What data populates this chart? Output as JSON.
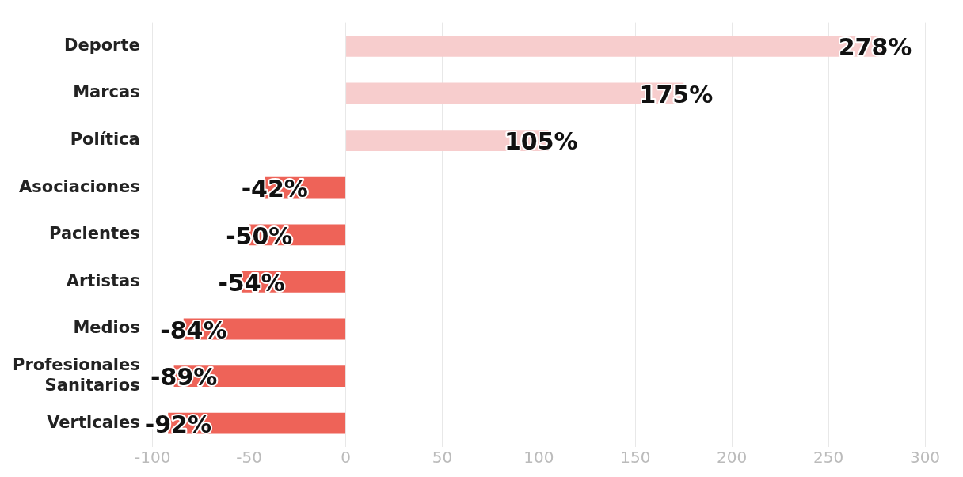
{
  "chart_data": {
    "type": "bar",
    "orientation": "horizontal",
    "categories": [
      "Deporte",
      "Marcas",
      "Política",
      "Asociaciones",
      "Pacientes",
      "Artistas",
      "Medios",
      "Profesionales Sanitarios",
      "Verticales"
    ],
    "values": [
      278,
      175,
      105,
      -42,
      -50,
      -54,
      -84,
      -89,
      -92
    ],
    "colors": [
      "#f7cdcd",
      "#f7cdcd",
      "#f7cdcd",
      "#ee6358",
      "#ee6358",
      "#ee6358",
      "#ee6358",
      "#ee6358",
      "#ee6358"
    ],
    "value_labels": [
      "278%",
      "175%",
      "105%",
      "-42%",
      "-50%",
      "-54%",
      "-84%",
      "-89%",
      "-92%"
    ],
    "xlim": [
      -100,
      300
    ],
    "xticks": [
      -100,
      -50,
      0,
      50,
      100,
      150,
      200,
      250,
      300
    ],
    "grid": "x",
    "legend": false
  }
}
